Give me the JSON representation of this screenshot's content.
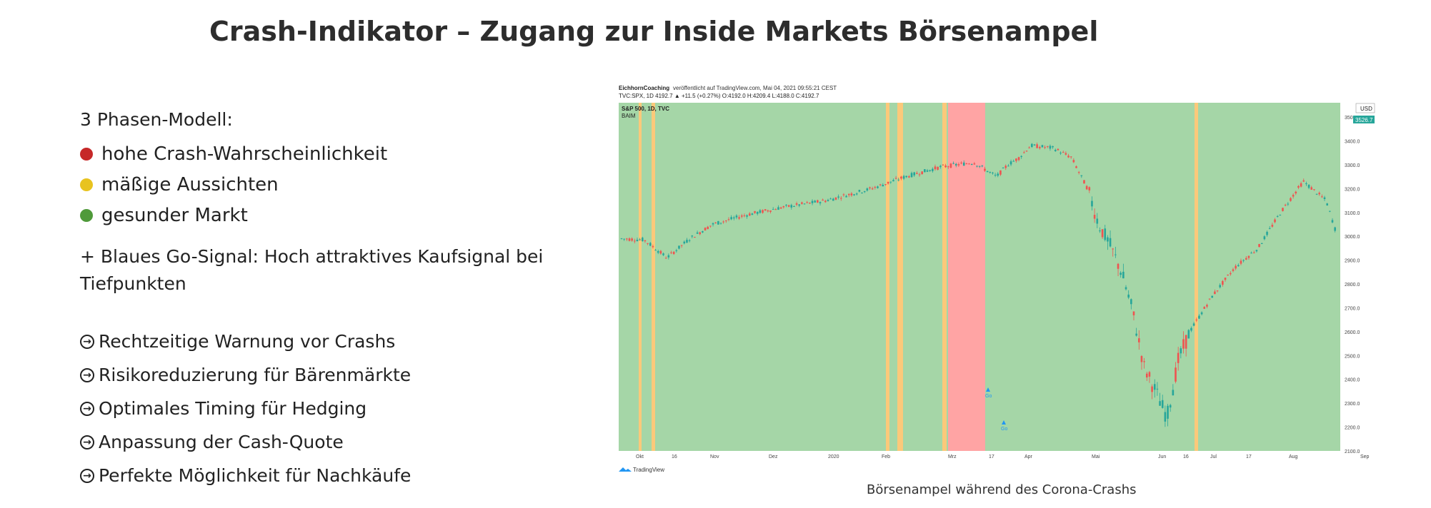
{
  "page": {
    "title": "Crash-Indikator – Zugang zur Inside Markets Börsenampel"
  },
  "phases": {
    "title": "3 Phasen-Modell:",
    "items": [
      {
        "label": "hohe Crash-Wahrscheinlichkeit",
        "color": "#c62828"
      },
      {
        "label": "mäßige Aussichten",
        "color": "#e8c31f"
      },
      {
        "label": "gesunder Markt",
        "color": "#4f9a3a"
      }
    ]
  },
  "go_signal": "+ Blaues Go-Signal: Hoch attraktives Kaufsignal bei Tiefpunkten",
  "benefits": [
    "Rechtzeitige Warnung vor Crashs",
    "Risikoreduzierung für Bärenmärkte",
    "Optimales Timing für Hedging",
    "Anpassung der Cash-Quote",
    "Perfekte Möglichkeit für Nachkäufe"
  ],
  "chart_header": {
    "publisher": "EichhornCoaching",
    "published": "veröffentlicht auf TradingView.com, Mai 04, 2021 09:55:21 CEST",
    "ohlc": "TVC:SPX, 1D 4192.7 ▲ +11.5 (+0.27%) O:4192.0 H:4209.4 L:4188.0 C:4192.7",
    "symbol": "S&P 500, 1D, TVC",
    "indicator": "BAIM",
    "currency": "USD",
    "last_price": "3526.7",
    "logo_text": "TradingView"
  },
  "chart_data": {
    "type": "line",
    "title": "S&P 500, 1D, TVC",
    "ylim": [
      2100,
      3560
    ],
    "yticks": [
      "3500.0",
      "3400.0",
      "3300.0",
      "3200.0",
      "3100.0",
      "3000.0",
      "2900.0",
      "2800.0",
      "2700.0",
      "2600.0",
      "2500.0",
      "2400.0",
      "2300.0",
      "2200.0",
      "2100.0"
    ],
    "xlabels": [
      "Okt",
      "16",
      "Nov",
      "Dez",
      "2020",
      "Feb",
      "Mrz",
      "17",
      "Apr",
      "Mai",
      "Jun",
      "16",
      "Jul",
      "17",
      "Aug",
      "Sep"
    ],
    "series": [
      {
        "name": "SPX",
        "x": [
          0,
          10,
          20,
          30,
          40,
          55,
          70,
          90,
          110,
          125,
          140,
          155,
          165,
          170,
          175,
          180,
          190,
          198,
          205,
          210,
          215,
          220,
          225,
          230,
          235,
          240,
          245,
          250,
          260,
          270,
          280,
          290,
          300,
          310,
          315
        ],
        "values": [
          2990,
          2985,
          2910,
          2990,
          3050,
          3090,
          3120,
          3150,
          3200,
          3250,
          3290,
          3310,
          3250,
          3300,
          3330,
          3380,
          3370,
          3330,
          3200,
          3050,
          2960,
          2850,
          2680,
          2450,
          2350,
          2240,
          2480,
          2600,
          2750,
          2870,
          2950,
          3100,
          3230,
          3150,
          3000
        ]
      }
    ],
    "phase_bands": [
      {
        "phase": "yellow"
      },
      {
        "phase": "yellow"
      },
      {
        "phase": "yellow"
      },
      {
        "phase": "yellow"
      },
      {
        "phase": "yellow"
      },
      {
        "phase": "red"
      },
      {
        "phase": "yellow"
      }
    ],
    "signals": [
      {
        "label": "Go"
      },
      {
        "label": "Go"
      }
    ]
  },
  "caption": "Börsenampel während des Corona-Crashs"
}
